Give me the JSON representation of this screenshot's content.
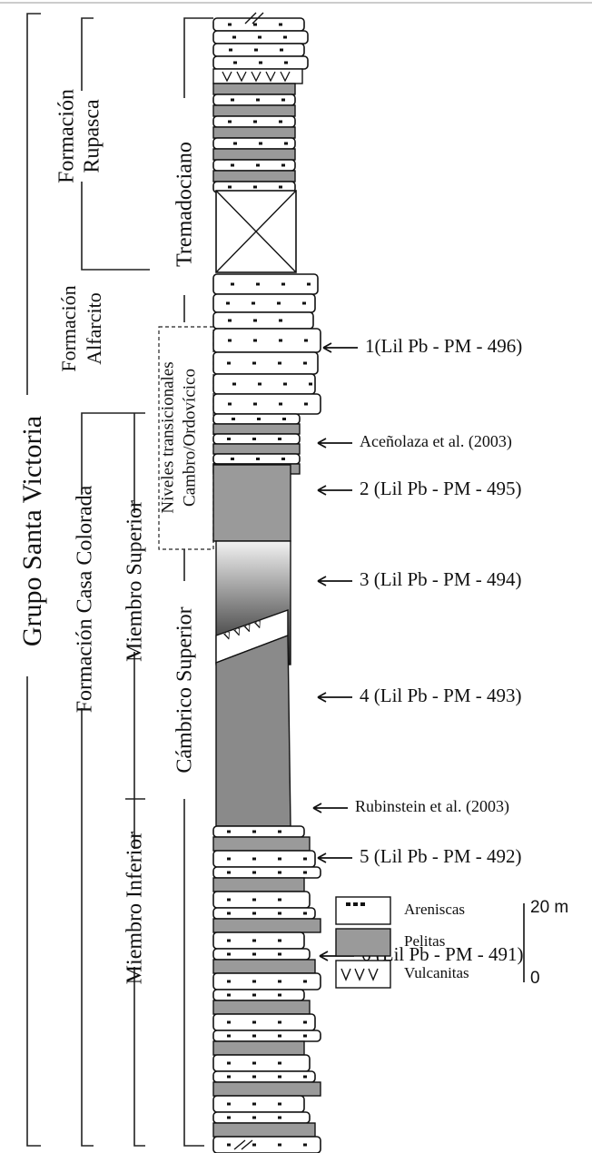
{
  "units": [
    {
      "lines": [
        "Grupo Santa Victoria"
      ]
    },
    {
      "lines": [
        "Formación",
        "Rupasca"
      ]
    },
    {
      "lines": [
        "Formación",
        "Alfarcito"
      ]
    },
    {
      "lines": [
        "Formación Casa Colorada"
      ]
    },
    {
      "lines": [
        "Miembro Superior"
      ]
    },
    {
      "lines": [
        "Miembro Inferior"
      ]
    },
    {
      "lines": [
        "Tremadociano"
      ]
    },
    {
      "lines": [
        "Niveles transicionales",
        "Cambro/Ordovícico"
      ]
    },
    {
      "lines": [
        "Cámbrico Superior"
      ]
    }
  ],
  "samples": [
    {
      "label": "1(Lil Pb - PM - 496)"
    },
    {
      "label": "Aceñolaza et al. (2003)"
    },
    {
      "label": "2 (Lil Pb - PM - 495)"
    },
    {
      "label": "3 (Lil Pb - PM - 494)"
    },
    {
      "label": "4 (Lil Pb - PM - 493)"
    },
    {
      "label": "Rubinstein et al. (2003)"
    },
    {
      "label": "5 (Lil Pb - PM - 492)"
    },
    {
      "label": "6 (Lil Pb - PM - 491)"
    }
  ],
  "legend": [
    {
      "label": "Areniscas"
    },
    {
      "label": "Pelitas"
    },
    {
      "label": "Vulcanitas"
    }
  ],
  "scale": {
    "top": "20 m",
    "bottom": "0"
  }
}
